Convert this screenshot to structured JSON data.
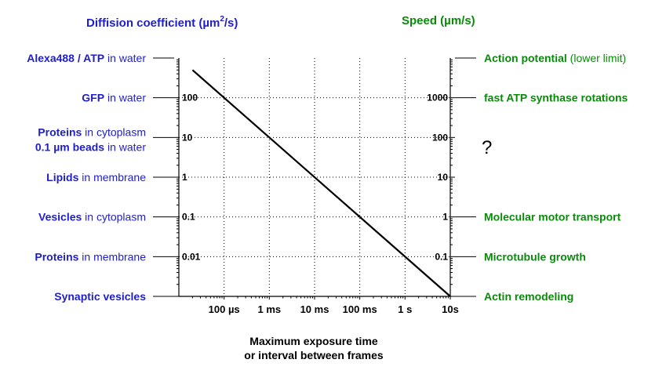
{
  "chart_data": {
    "type": "line",
    "left_axis_title": {
      "main": "Diffision coefficient (",
      "unit_mu": "µm",
      "sup": "2",
      "tail": "/s)"
    },
    "right_axis_title": "Speed (µm/s)",
    "xlabel_line1": "Maximum exposure time",
    "xlabel_line2": "or interval between frames",
    "x_ticks": [
      {
        "label": "100 µs",
        "t_s": 0.0001
      },
      {
        "label": "1 ms",
        "t_s": 0.001
      },
      {
        "label": "10 ms",
        "t_s": 0.01
      },
      {
        "label": "100 ms",
        "t_s": 0.1
      },
      {
        "label": "1 s",
        "t_s": 1
      },
      {
        "label": "10s",
        "t_s": 10
      }
    ],
    "xlim_s": [
      1e-05,
      10
    ],
    "left_ticks": [
      {
        "label": "100",
        "value": 100
      },
      {
        "label": "10",
        "value": 10
      },
      {
        "label": "1",
        "value": 1
      },
      {
        "label": "0.1",
        "value": 0.1
      },
      {
        "label": "0.01",
        "value": 0.01
      }
    ],
    "left_ylim": [
      0.001,
      1000
    ],
    "right_ticks": [
      {
        "label": "1000",
        "value": 1000
      },
      {
        "label": "100",
        "value": 100
      },
      {
        "label": "10",
        "value": 10
      },
      {
        "label": "1",
        "value": 1
      },
      {
        "label": "0.1",
        "value": 0.1
      }
    ],
    "right_ylim": [
      0.01,
      10000
    ],
    "series": [
      {
        "x": [
          2e-05,
          10
        ],
        "y": [
          500,
          0.001
        ]
      }
    ],
    "left_annotations": [
      {
        "bold": "Alexa488 / ATP",
        "rest": " in water",
        "value": 1000
      },
      {
        "bold": "GFP",
        "rest": " in water",
        "value": 100
      },
      {
        "bold": "Proteins",
        "rest": " in cytoplasm",
        "bold2": "0.1 µm beads",
        "rest2": " in water",
        "value": 10
      },
      {
        "bold": "Lipids",
        "rest": " in membrane",
        "value": 1
      },
      {
        "bold": "Vesicles",
        "rest": " in cytoplasm",
        "value": 0.1
      },
      {
        "bold": "Proteins",
        "rest": " in membrane",
        "value": 0.01
      },
      {
        "bold": "Synaptic vesicles",
        "rest": "",
        "value": 0.001
      }
    ],
    "right_annotations": [
      {
        "bold": "Action potential",
        "rest": " (lower limit)",
        "value": 10000
      },
      {
        "bold": "fast ATP synthase rotations",
        "rest": "",
        "value": 1000
      },
      {
        "bold": "Molecular motor transport",
        "rest": "",
        "value": 1
      },
      {
        "bold": "Microtubule growth",
        "rest": "",
        "value": 0.1
      },
      {
        "bold": "Actin remodeling",
        "rest": "",
        "value": 0.01
      }
    ],
    "question_mark": "?",
    "grid": true,
    "colors": {
      "left": "#1f1fc8",
      "right": "#0a8a0a",
      "axes": "#000000",
      "grid": "#000000"
    }
  }
}
